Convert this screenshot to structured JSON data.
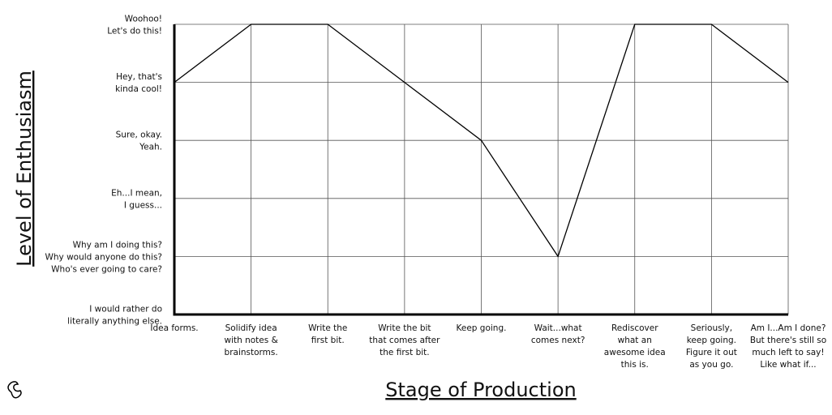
{
  "chart_data": {
    "type": "line",
    "x_label": "Stage of Production",
    "y_label": "Level of Enthusiasm",
    "categories": [
      "Idea forms.",
      "Solidify idea\nwith notes &\nbrainstorms.",
      "Write the\nfirst bit.",
      "Write the bit\nthat comes after\nthe first bit.",
      "Keep going.",
      "Wait...what\ncomes next?",
      "Rediscover\nwhat an\nawesome idea\nthis is.",
      "Seriously,\nkeep going.\nFigure it out\nas you go.",
      "Am I...Am I done?\nBut there's still so\nmuch left to say!\nLike what if..."
    ],
    "values": [
      4,
      5,
      5,
      4,
      3,
      1,
      5,
      5,
      4
    ],
    "color": "#000000",
    "ylim": [
      0,
      5
    ],
    "yticks": [
      {
        "value": 0,
        "label": "I would rather do\nliterally anything else."
      },
      {
        "value": 1,
        "label": "Why am I doing this?\nWhy would anyone do this?\nWho's ever going to care?"
      },
      {
        "value": 2,
        "label": "Eh...I mean,\nI guess..."
      },
      {
        "value": 3,
        "label": "Sure, okay.\nYeah."
      },
      {
        "value": 4,
        "label": "Hey, that's\nkinda cool!"
      },
      {
        "value": 5,
        "label": "Woohoo!\nLet's do this!"
      }
    ],
    "grid": true
  }
}
